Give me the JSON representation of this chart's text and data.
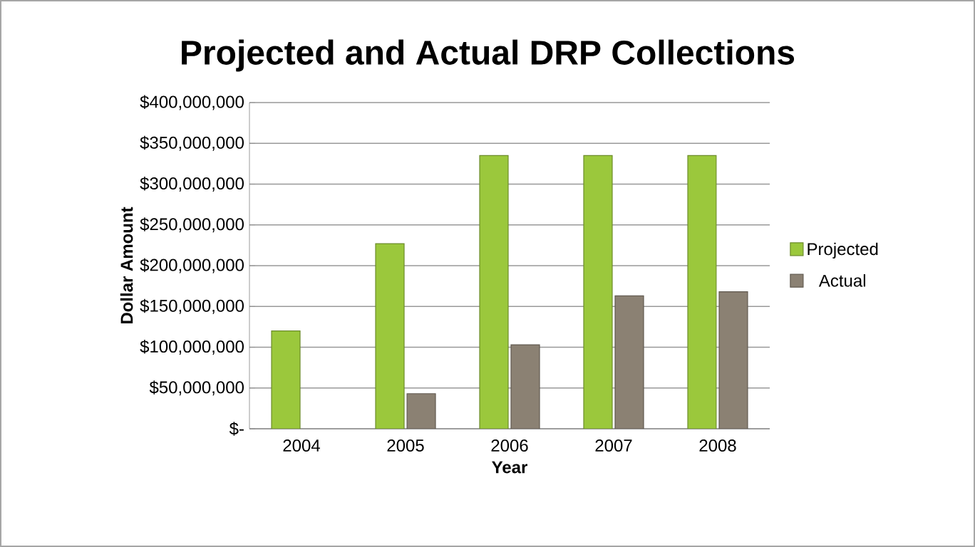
{
  "chart_data": {
    "type": "bar",
    "title": "Projected and Actual DRP Collections",
    "xlabel": "Year",
    "ylabel": "Dollar Amount",
    "categories": [
      "2004",
      "2005",
      "2006",
      "2007",
      "2008"
    ],
    "series": [
      {
        "name": "Projected",
        "color": "#9bc83c",
        "values": [
          120000000,
          227000000,
          335000000,
          335000000,
          335000000
        ]
      },
      {
        "name": "Actual",
        "color": "#8b8173",
        "values": [
          null,
          43000000,
          103000000,
          163000000,
          168000000
        ]
      }
    ],
    "ylim": [
      0,
      400000000
    ],
    "yticks": [
      {
        "value": 0,
        "label": "$-"
      },
      {
        "value": 50000000,
        "label": "$50,000,000"
      },
      {
        "value": 100000000,
        "label": "$100,000,000"
      },
      {
        "value": 150000000,
        "label": "$150,000,000"
      },
      {
        "value": 200000000,
        "label": "$200,000,000"
      },
      {
        "value": 250000000,
        "label": "$250,000,000"
      },
      {
        "value": 300000000,
        "label": "$300,000,000"
      },
      {
        "value": 350000000,
        "label": "$350,000,000"
      },
      {
        "value": 400000000,
        "label": "$400,000,000"
      }
    ],
    "grid": "y",
    "legend": "right"
  }
}
